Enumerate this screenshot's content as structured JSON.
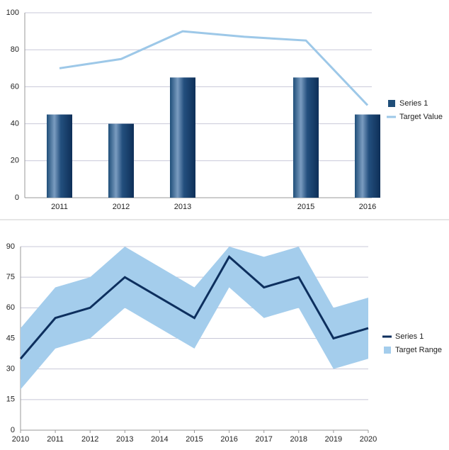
{
  "chart_data": [
    {
      "type": "bar-line",
      "categories": [
        "2011",
        "2012",
        "2013",
        null,
        "2015",
        "2016"
      ],
      "series": [
        {
          "name": "Series 1",
          "kind": "bar",
          "color": "#1f4e79",
          "values": [
            45,
            40,
            65,
            null,
            65,
            45
          ]
        },
        {
          "name": "Target Value",
          "kind": "line",
          "color": "#9dc8e8",
          "values": [
            70,
            75,
            90,
            87,
            85,
            50
          ]
        }
      ],
      "ylim": [
        0,
        100
      ],
      "yticks": [
        0,
        20,
        40,
        60,
        80,
        100
      ],
      "grid": true,
      "legend": "right"
    },
    {
      "type": "line-range",
      "x": [
        2010,
        2011,
        2012,
        2013,
        2014,
        2015,
        2016,
        2017,
        2018,
        2019,
        2020
      ],
      "series": [
        {
          "name": "Series 1",
          "kind": "line",
          "color": "#0d2f5e",
          "values": [
            35,
            55,
            60,
            75,
            65,
            55,
            85,
            70,
            75,
            45,
            50
          ]
        },
        {
          "name": "Target Range",
          "kind": "range",
          "color": "#a4cdec",
          "low": [
            20,
            40,
            45,
            60,
            50,
            40,
            70,
            55,
            60,
            30,
            35
          ],
          "high": [
            50,
            70,
            75,
            90,
            80,
            70,
            90,
            85,
            90,
            60,
            65
          ]
        }
      ],
      "xlim": [
        2010,
        2020
      ],
      "xticks": [
        2010,
        2011,
        2012,
        2013,
        2014,
        2015,
        2016,
        2017,
        2018,
        2019,
        2020
      ],
      "ylim": [
        0,
        90
      ],
      "yticks": [
        0,
        15,
        30,
        45,
        60,
        75,
        90
      ],
      "grid": true,
      "legend": "right"
    }
  ]
}
